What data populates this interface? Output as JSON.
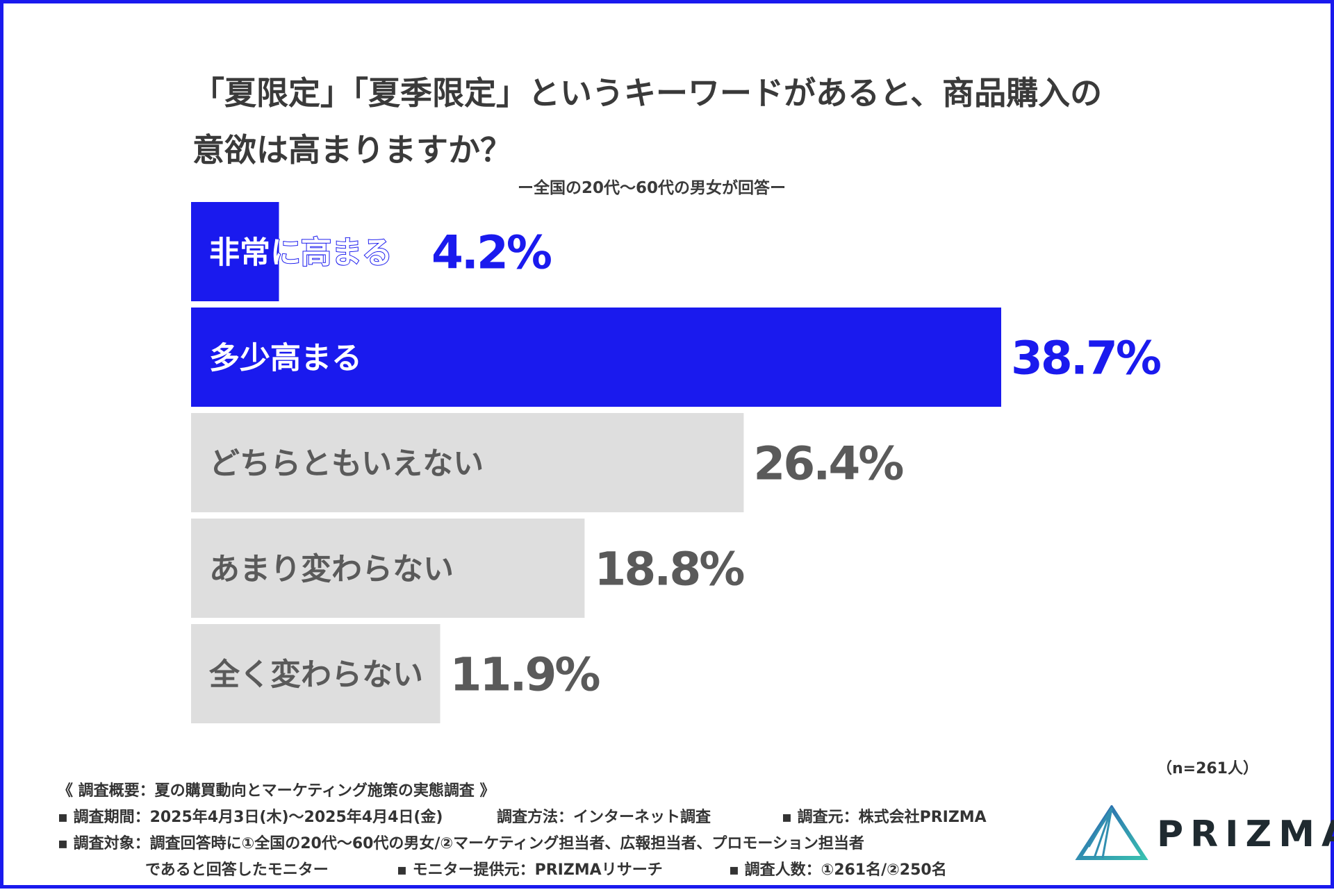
{
  "title_line1": "「夏限定」「夏季限定」というキーワードがあると、商品購入の",
  "title_line2": "意欲は高まりますか？",
  "subtitle": "ー全国の20代〜60代の男女が回答ー",
  "chart_data": {
    "type": "bar",
    "orientation": "horizontal",
    "title": "「夏限定」「夏季限定」というキーワードがあると、商品購入の意欲は高まりますか？",
    "categories": [
      "非常に高まる",
      "多少高まる",
      "どちらともいえない",
      "あまり変わらない",
      "全く変わらない"
    ],
    "values": [
      4.2,
      38.7,
      26.4,
      18.8,
      11.9
    ],
    "value_labels": [
      "4.2%",
      "38.7%",
      "26.4%",
      "18.8%",
      "11.9%"
    ],
    "colors": [
      "#1a1aee",
      "#1a1aee",
      "#dedede",
      "#dedede",
      "#dedede"
    ],
    "label_colors": [
      "#1a1aee",
      "#1a1aee",
      "#5a5a5a",
      "#5a5a5a",
      "#5a5a5a"
    ],
    "xlim": [
      0,
      40
    ],
    "unit": "%"
  },
  "sample_size": "（n=261人）",
  "footer": {
    "summary": "《 調査概要：夏の購買動向とマーケティング施策の実態調査 》",
    "period": "▪ 調査期間：2025年4月3日(木)〜2025年4月4日(金)",
    "method": "調査方法：インターネット調査",
    "source": "▪ 調査元：株式会社PRIZMA",
    "target": "▪ 調査対象：調査回答時に①全国の20代〜60代の男女/②マーケティング担当者、広報担当者、プロモーション担当者",
    "target_cont": "であると回答したモニター",
    "provider": "▪ モニター提供元：PRIZMAリサーチ",
    "count": "▪ 調査人数：①261名/②250名"
  },
  "logo_text": "PRIZMA"
}
